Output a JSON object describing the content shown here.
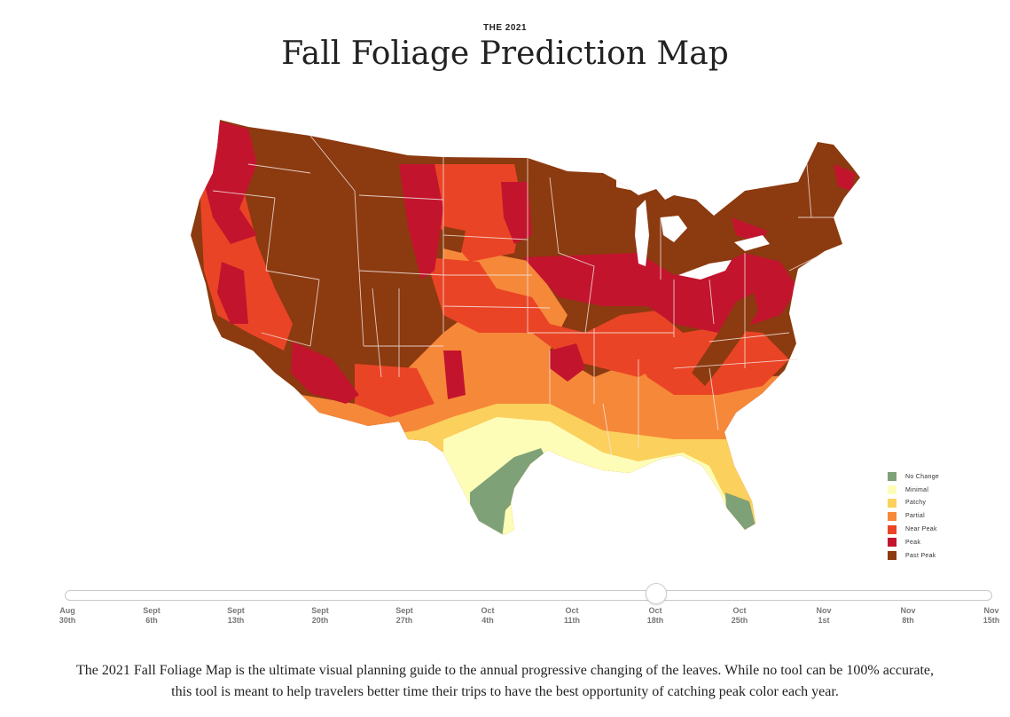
{
  "header": {
    "eyebrow": "THE 2021",
    "title": "Fall Foliage Prediction Map"
  },
  "legend": [
    {
      "label": "No Change",
      "color": "#7fa178"
    },
    {
      "label": "Minimal",
      "color": "#fdfdb8"
    },
    {
      "label": "Patchy",
      "color": "#fcd05c"
    },
    {
      "label": "Partial",
      "color": "#f6883a"
    },
    {
      "label": "Near Peak",
      "color": "#ea4426"
    },
    {
      "label": "Peak",
      "color": "#c3142e"
    },
    {
      "label": "Past Peak",
      "color": "#8c3a10"
    }
  ],
  "timeline": {
    "selected_index": 7,
    "ticks": [
      {
        "line1": "Aug",
        "line2": "30th"
      },
      {
        "line1": "Sept",
        "line2": "6th"
      },
      {
        "line1": "Sept",
        "line2": "13th"
      },
      {
        "line1": "Sept",
        "line2": "20th"
      },
      {
        "line1": "Sept",
        "line2": "27th"
      },
      {
        "line1": "Oct",
        "line2": "4th"
      },
      {
        "line1": "Oct",
        "line2": "11th"
      },
      {
        "line1": "Oct",
        "line2": "18th"
      },
      {
        "line1": "Oct",
        "line2": "25th"
      },
      {
        "line1": "Nov",
        "line2": "1st"
      },
      {
        "line1": "Nov",
        "line2": "8th"
      },
      {
        "line1": "Nov",
        "line2": "15th"
      }
    ]
  },
  "description": {
    "line1": "The 2021 Fall Foliage Map is the ultimate visual planning guide to the annual progressive changing of the leaves. While no tool can be 100% accurate,",
    "line2": "this tool is meant to help travelers better time their trips to have the best opportunity of catching peak color each year."
  }
}
